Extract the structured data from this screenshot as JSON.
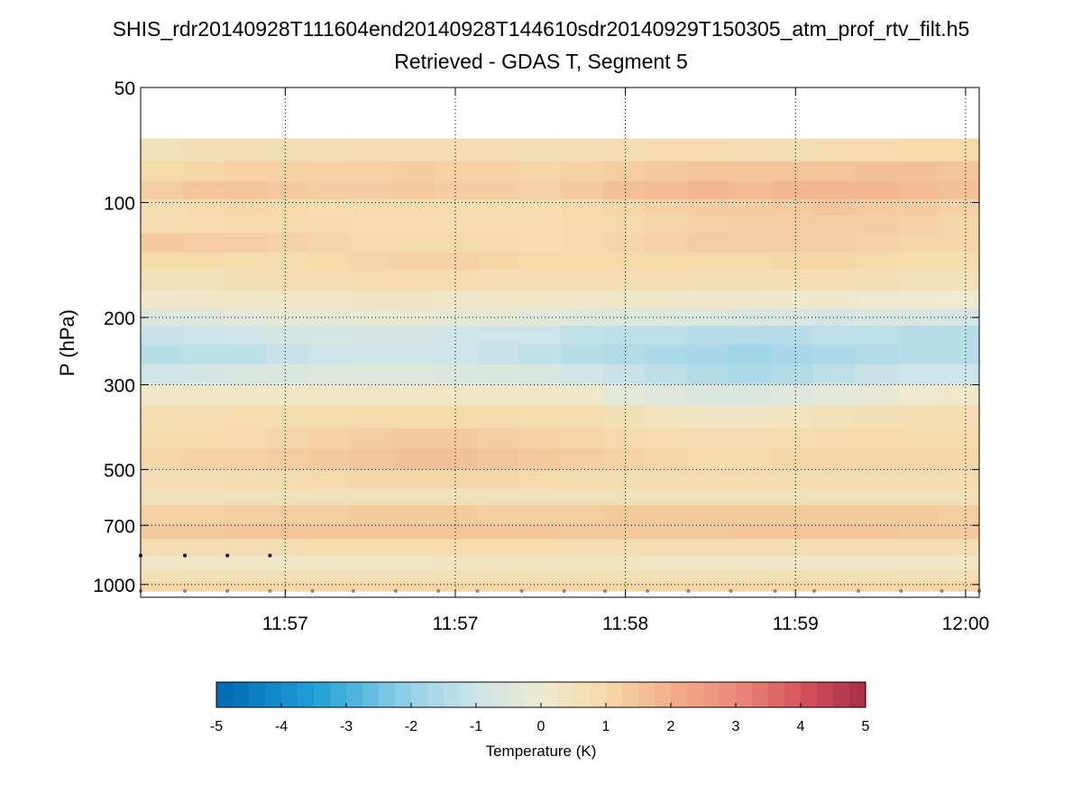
{
  "chart_data": {
    "type": "heatmap",
    "title": "SHIS_rdr20140928T111604end20140928T144610sdr20140929T150305_atm_prof_rtv_filt.h5",
    "subtitle": "Retrieved - GDAS T, Segment 5",
    "ylabel": "P (hPa)",
    "yscale": "log",
    "yreverse": true,
    "ylim": [
      50,
      1080
    ],
    "yticks": [
      50,
      100,
      200,
      300,
      500,
      700,
      1000
    ],
    "xticks": [
      {
        "label": "11:57",
        "t": 1.0
      },
      {
        "label": "11:57",
        "t": 2.0
      },
      {
        "label": "11:58",
        "t": 3.0
      },
      {
        "label": "11:59",
        "t": 4.0
      },
      {
        "label": "12:00",
        "t": 5.0
      }
    ],
    "xlim": [
      0.15,
      5.08
    ],
    "grid": true,
    "colorbar": {
      "label": "Temperature (K)",
      "range": [
        -5,
        5
      ],
      "ticks": [
        "-5",
        "-4",
        "-3",
        "-2",
        "-1",
        "0",
        "1",
        "2",
        "3",
        "4",
        "5"
      ]
    },
    "pressure_levels": [
      68,
      78,
      88,
      98,
      108,
      120,
      135,
      150,
      170,
      190,
      210,
      235,
      265,
      300,
      340,
      390,
      440,
      500,
      560,
      620,
      690,
      760,
      840,
      920,
      980,
      1040
    ],
    "column_times": [
      0.15,
      0.4,
      0.64,
      0.89,
      1.14,
      1.38,
      1.63,
      1.88,
      2.13,
      2.37,
      2.62,
      2.87,
      3.11,
      3.36,
      3.61,
      3.86,
      4.1,
      4.35,
      4.6,
      4.84,
      5.08
    ],
    "values": [
      [
        0.6,
        0.7,
        0.75,
        0.75,
        0.7,
        0.8,
        0.8,
        0.8,
        0.8,
        0.75,
        0.7,
        0.8,
        0.9,
        0.9,
        0.8,
        0.75,
        0.9,
        0.9,
        1.0,
        1.0
      ],
      [
        1.0,
        1.1,
        1.2,
        1.2,
        1.2,
        1.2,
        1.3,
        1.2,
        1.2,
        1.1,
        1.2,
        1.3,
        1.4,
        1.5,
        1.5,
        1.5,
        1.5,
        1.6,
        1.6,
        1.5
      ],
      [
        1.3,
        1.5,
        1.5,
        1.4,
        1.3,
        1.3,
        1.4,
        1.3,
        1.3,
        1.2,
        1.4,
        1.6,
        1.7,
        1.8,
        1.7,
        1.8,
        1.8,
        1.8,
        1.7,
        1.6
      ],
      [
        0.9,
        1.0,
        1.1,
        1.0,
        0.9,
        1.0,
        1.0,
        0.9,
        0.9,
        0.9,
        1.0,
        1.1,
        1.2,
        1.3,
        1.3,
        1.4,
        1.5,
        1.4,
        1.3,
        1.2
      ],
      [
        0.8,
        0.9,
        1.0,
        1.0,
        1.0,
        0.9,
        0.9,
        0.9,
        0.9,
        0.9,
        1.0,
        1.0,
        1.1,
        1.2,
        1.3,
        1.3,
        1.3,
        1.3,
        1.2,
        1.1
      ],
      [
        1.4,
        1.3,
        1.3,
        1.2,
        1.1,
        1.0,
        1.0,
        1.0,
        1.0,
        0.9,
        1.0,
        1.1,
        1.2,
        1.3,
        1.3,
        1.3,
        1.3,
        1.2,
        1.1,
        1.1
      ],
      [
        1.0,
        1.0,
        0.9,
        0.9,
        1.0,
        1.1,
        1.2,
        1.2,
        1.1,
        1.0,
        1.0,
        1.0,
        1.0,
        1.0,
        1.0,
        1.1,
        1.1,
        1.0,
        0.9,
        0.9
      ],
      [
        0.6,
        0.6,
        0.7,
        0.8,
        0.8,
        0.9,
        0.9,
        0.9,
        0.8,
        0.8,
        0.8,
        0.8,
        0.8,
        0.7,
        0.7,
        0.8,
        0.8,
        0.7,
        0.6,
        0.6
      ],
      [
        0.1,
        0.2,
        0.2,
        0.3,
        0.3,
        0.4,
        0.4,
        0.3,
        0.3,
        0.3,
        0.3,
        0.2,
        0.2,
        0.1,
        0.1,
        0.1,
        0.1,
        0.0,
        0.0,
        0.0
      ],
      [
        -0.6,
        -0.5,
        -0.4,
        -0.3,
        -0.3,
        -0.2,
        -0.2,
        -0.3,
        -0.3,
        -0.4,
        -0.5,
        -0.6,
        -0.6,
        -0.6,
        -0.7,
        -0.7,
        -0.8,
        -0.7,
        -0.7,
        -0.8
      ],
      [
        -1.1,
        -1.0,
        -0.9,
        -0.8,
        -0.8,
        -0.8,
        -0.8,
        -0.9,
        -1.0,
        -1.0,
        -1.2,
        -1.3,
        -1.3,
        -1.4,
        -1.4,
        -1.4,
        -1.3,
        -1.3,
        -1.4,
        -1.4
      ],
      [
        -1.4,
        -1.3,
        -1.3,
        -1.1,
        -1.0,
        -0.9,
        -0.9,
        -1.0,
        -1.1,
        -1.2,
        -1.4,
        -1.5,
        -1.6,
        -1.7,
        -1.8,
        -1.7,
        -1.6,
        -1.5,
        -1.4,
        -1.4
      ],
      [
        -0.9,
        -0.8,
        -0.7,
        -0.6,
        -0.5,
        -0.5,
        -0.5,
        -0.6,
        -0.6,
        -0.7,
        -0.9,
        -1.1,
        -1.3,
        -1.5,
        -1.6,
        -1.5,
        -1.3,
        -1.1,
        -1.0,
        -1.0
      ],
      [
        0.2,
        0.3,
        0.3,
        0.3,
        0.3,
        0.3,
        0.3,
        0.3,
        0.3,
        0.2,
        0.1,
        -0.3,
        -0.5,
        -0.6,
        -0.6,
        -0.5,
        -0.3,
        -0.2,
        0.0,
        0.1
      ],
      [
        0.8,
        0.8,
        0.9,
        0.9,
        0.9,
        1.0,
        1.0,
        1.0,
        1.0,
        0.9,
        0.9,
        0.7,
        0.5,
        0.4,
        0.4,
        0.5,
        0.6,
        0.7,
        0.8,
        0.8
      ],
      [
        1.0,
        1.0,
        1.0,
        1.1,
        1.2,
        1.3,
        1.4,
        1.4,
        1.3,
        1.2,
        1.1,
        1.0,
        0.9,
        0.8,
        0.8,
        0.9,
        1.0,
        1.0,
        1.0,
        1.0
      ],
      [
        1.1,
        1.2,
        1.2,
        1.3,
        1.4,
        1.5,
        1.6,
        1.6,
        1.5,
        1.4,
        1.3,
        1.2,
        1.1,
        1.0,
        1.0,
        1.1,
        1.1,
        1.1,
        1.1,
        1.1
      ],
      [
        0.8,
        0.8,
        0.9,
        0.9,
        1.0,
        1.1,
        1.1,
        1.1,
        1.1,
        1.0,
        0.9,
        0.9,
        0.9,
        0.9,
        0.9,
        0.9,
        0.9,
        0.9,
        0.9,
        0.9
      ],
      [
        0.6,
        0.6,
        0.6,
        0.6,
        0.6,
        0.6,
        0.6,
        0.6,
        0.6,
        0.6,
        0.6,
        0.6,
        0.6,
        0.6,
        0.6,
        0.6,
        0.6,
        0.6,
        0.6,
        0.6
      ],
      [
        1.2,
        1.2,
        1.3,
        1.3,
        1.3,
        1.4,
        1.4,
        1.4,
        1.3,
        1.3,
        1.3,
        1.4,
        1.4,
        1.4,
        1.4,
        1.4,
        1.4,
        1.4,
        1.4,
        1.3
      ],
      [
        1.4,
        1.4,
        1.5,
        1.5,
        1.5,
        1.5,
        1.5,
        1.5,
        1.5,
        1.5,
        1.4,
        1.4,
        1.4,
        1.4,
        1.5,
        1.5,
        1.5,
        1.5,
        1.4,
        1.4
      ],
      [
        0.8,
        0.8,
        0.8,
        0.8,
        0.9,
        0.9,
        0.9,
        0.9,
        0.9,
        0.9,
        0.8,
        0.8,
        0.8,
        0.8,
        0.8,
        0.8,
        0.8,
        0.8,
        0.8,
        0.8
      ],
      [
        0.2,
        0.3,
        0.3,
        0.3,
        0.3,
        0.3,
        0.3,
        0.4,
        0.4,
        0.4,
        0.4,
        0.4,
        0.3,
        0.3,
        0.3,
        0.2,
        0.2,
        0.2,
        0.3,
        0.3
      ],
      [
        0.7,
        0.7,
        0.7,
        0.7,
        0.7,
        0.7,
        0.7,
        0.7,
        0.7,
        0.7,
        0.7,
        0.7,
        0.7,
        0.7,
        0.7,
        0.7,
        0.7,
        0.7,
        0.7,
        0.7
      ],
      [
        1.1,
        1.1,
        1.1,
        1.1,
        1.1,
        1.1,
        1.1,
        1.1,
        1.1,
        1.1,
        1.1,
        1.1,
        1.1,
        1.1,
        1.1,
        1.1,
        1.1,
        1.1,
        1.1,
        1.1
      ],
      [
        2.5,
        2.5,
        2.5,
        2.5,
        2.5,
        2.5,
        2.5,
        2.5,
        2.5,
        2.5,
        2.5,
        2.5,
        2.5,
        2.5,
        2.5,
        2.5,
        2.5,
        2.5,
        2.5,
        2.5
      ]
    ],
    "markers_upper": {
      "pressure": 840,
      "t": [
        0.15,
        0.41,
        0.66,
        0.91
      ],
      "color": "#000000"
    },
    "markers_lower": {
      "pressure": 1040,
      "t": [
        0.15,
        0.41,
        0.66,
        0.91,
        1.16,
        1.4,
        1.65,
        1.9,
        2.13,
        2.39,
        2.64,
        2.88,
        3.13,
        3.37,
        3.62,
        3.88,
        4.11,
        4.37,
        4.62,
        4.86,
        5.08
      ],
      "color": "#888888"
    }
  }
}
